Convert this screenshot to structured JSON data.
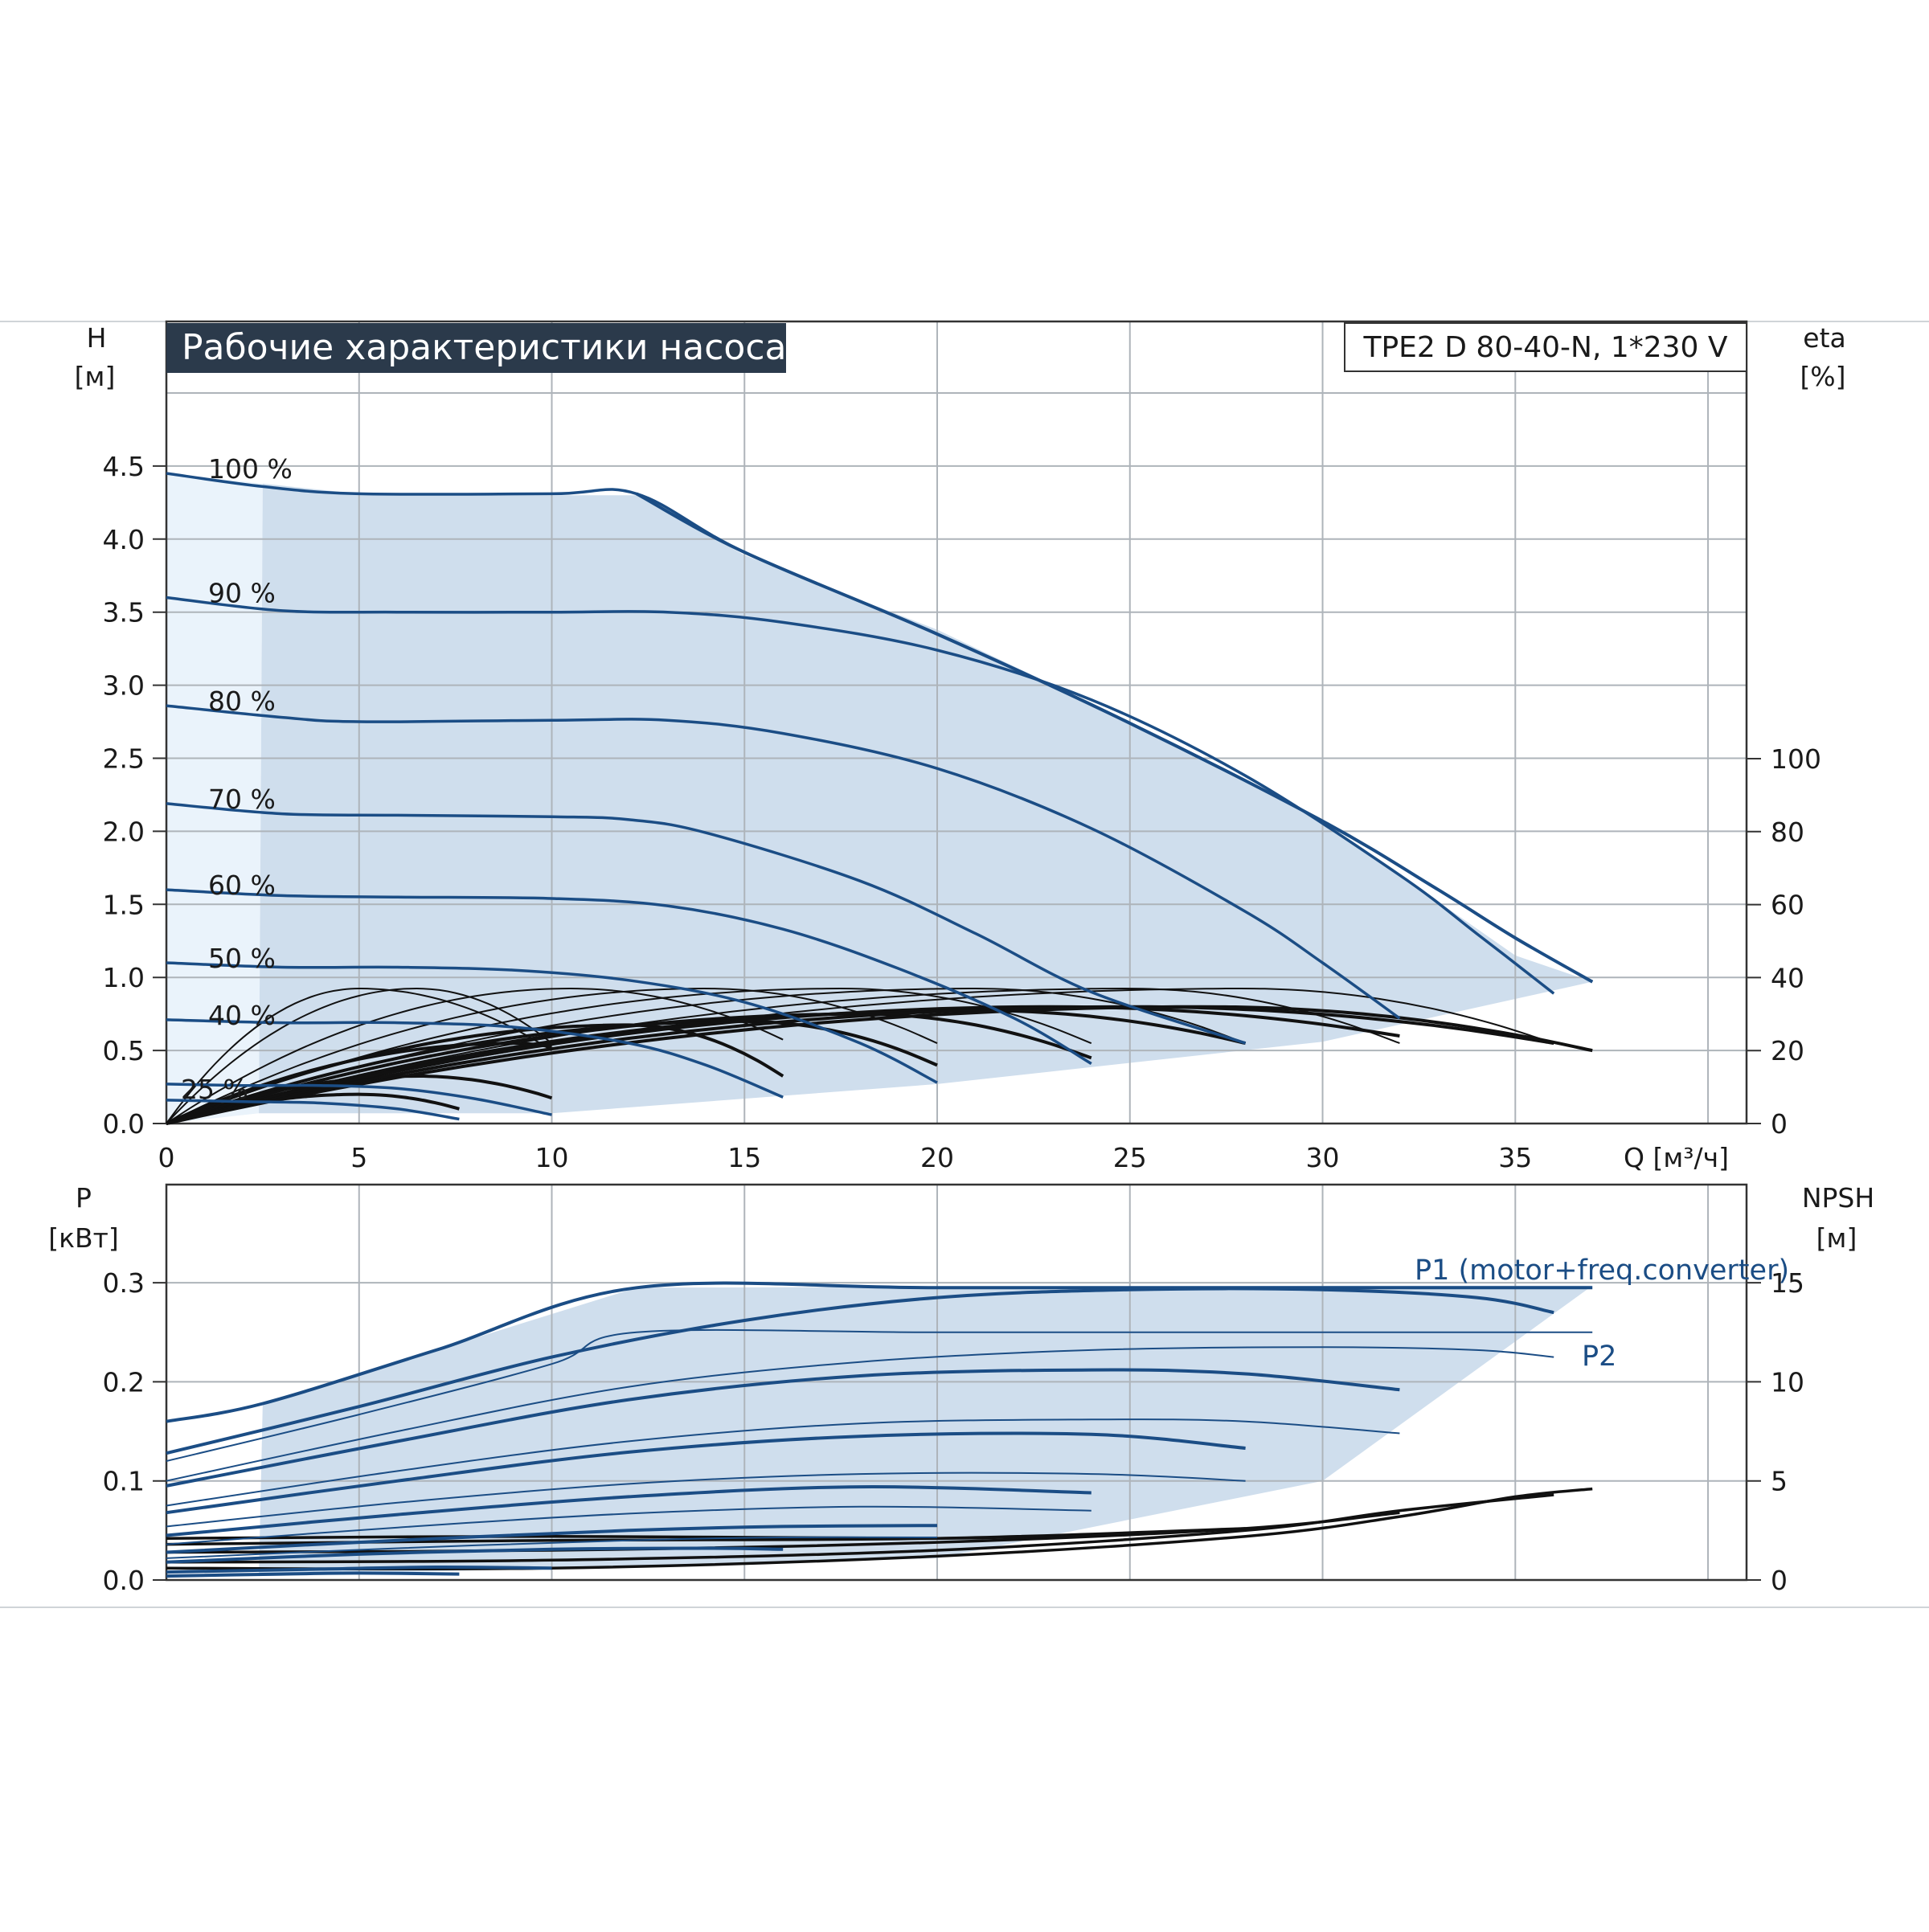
{
  "header": {
    "title": "Рабочие характеристики насоса",
    "model": "TPE2 D 80-40-N, 1*230 V"
  },
  "colors": {
    "curve": "#1b4d85",
    "fill": "#cfdeed",
    "fill_light": "#eaf3fb",
    "grid": "#aeb4ba",
    "title_bg": "#2b3a4b",
    "black": "#111111"
  },
  "chart_data": [
    {
      "type": "line",
      "panel": "head",
      "title": "Рабочие характеристики насоса",
      "y_label": "H",
      "y_unit": "[м]",
      "y2_label": "eta",
      "y2_unit": "[%]",
      "x_label": "Q [м³/ч]",
      "xlim": [
        0,
        41
      ],
      "ylim": [
        0,
        5
      ],
      "y2lim": [
        0,
        100
      ],
      "x_ticks": [
        "0",
        "5",
        "10",
        "15",
        "20",
        "25",
        "30",
        "35"
      ],
      "y_ticks": [
        "0.0",
        "0.5",
        "1.0",
        "1.5",
        "2.0",
        "2.5",
        "3.0",
        "3.5",
        "4.0",
        "4.5"
      ],
      "y2_ticks": [
        "0",
        "20",
        "40",
        "60",
        "80",
        "100"
      ],
      "grid": true,
      "operating_area": [
        [
          2.4,
          0.07
        ],
        [
          10,
          0.07
        ],
        [
          20,
          0.27
        ],
        [
          30,
          0.56
        ],
        [
          37,
          0.97
        ],
        [
          35,
          1.15
        ],
        [
          30,
          2.07
        ],
        [
          25,
          2.75
        ],
        [
          20,
          3.38
        ],
        [
          15,
          3.89
        ],
        [
          12.2,
          4.3
        ],
        [
          10,
          4.3
        ],
        [
          5,
          4.31
        ],
        [
          2.5,
          4.38
        ]
      ],
      "speed_curves": [
        {
          "name": "100 %",
          "points": [
            [
              0,
              4.45
            ],
            [
              2.5,
              4.36
            ],
            [
              5,
              4.31
            ],
            [
              10,
              4.31
            ],
            [
              12.2,
              4.31
            ],
            [
              15,
              3.91
            ],
            [
              20,
              3.35
            ],
            [
              25,
              2.74
            ],
            [
              30,
              2.07
            ],
            [
              33,
              1.6
            ],
            [
              35,
              1.27
            ],
            [
              37,
              0.97
            ]
          ]
        },
        {
          "name": "90 %",
          "points": [
            [
              0,
              3.6
            ],
            [
              3,
              3.51
            ],
            [
              6,
              3.5
            ],
            [
              10,
              3.5
            ],
            [
              13,
              3.5
            ],
            [
              16,
              3.43
            ],
            [
              20,
              3.24
            ],
            [
              24,
              2.9
            ],
            [
              28,
              2.38
            ],
            [
              32,
              1.7
            ],
            [
              34,
              1.3
            ],
            [
              36,
              0.89
            ]
          ]
        },
        {
          "name": "80 %",
          "points": [
            [
              0,
              2.86
            ],
            [
              3,
              2.78
            ],
            [
              5,
              2.75
            ],
            [
              10,
              2.76
            ],
            [
              13,
              2.76
            ],
            [
              16,
              2.67
            ],
            [
              20,
              2.43
            ],
            [
              24,
              2.02
            ],
            [
              28,
              1.45
            ],
            [
              30,
              1.1
            ],
            [
              32,
              0.72
            ]
          ]
        },
        {
          "name": "70 %",
          "points": [
            [
              0,
              2.19
            ],
            [
              3,
              2.12
            ],
            [
              6,
              2.11
            ],
            [
              10,
              2.1
            ],
            [
              12,
              2.08
            ],
            [
              14,
              1.99
            ],
            [
              18,
              1.66
            ],
            [
              21,
              1.3
            ],
            [
              24,
              0.9
            ],
            [
              28,
              0.55
            ]
          ]
        },
        {
          "name": "60 %",
          "points": [
            [
              0,
              1.6
            ],
            [
              3,
              1.56
            ],
            [
              6,
              1.55
            ],
            [
              10,
              1.54
            ],
            [
              13,
              1.49
            ],
            [
              16,
              1.33
            ],
            [
              19,
              1.06
            ],
            [
              22,
              0.72
            ],
            [
              24,
              0.41
            ]
          ]
        },
        {
          "name": "50 %",
          "points": [
            [
              0,
              1.1
            ],
            [
              3,
              1.07
            ],
            [
              6,
              1.07
            ],
            [
              9,
              1.05
            ],
            [
              12,
              0.98
            ],
            [
              15,
              0.83
            ],
            [
              18,
              0.55
            ],
            [
              20,
              0.28
            ]
          ]
        },
        {
          "name": "40 %",
          "points": [
            [
              0,
              0.71
            ],
            [
              3,
              0.69
            ],
            [
              6,
              0.69
            ],
            [
              9,
              0.66
            ],
            [
              12,
              0.55
            ],
            [
              14,
              0.4
            ],
            [
              16,
              0.18
            ]
          ]
        },
        {
          "name": "25 %",
          "points": [
            [
              0,
              0.27
            ],
            [
              2,
              0.26
            ],
            [
              4,
              0.26
            ],
            [
              6,
              0.24
            ],
            [
              8,
              0.17
            ],
            [
              10,
              0.06
            ]
          ]
        },
        {
          "name": "",
          "points": [
            [
              0,
              0.16
            ],
            [
              2,
              0.15
            ],
            [
              4,
              0.14
            ],
            [
              6,
              0.1
            ],
            [
              7.6,
              0.03
            ]
          ]
        }
      ],
      "efficiency_curves": [
        {
          "peak_x": 5,
          "peak_eta": 37,
          "end_x": 10,
          "end_eta": 20
        },
        {
          "peak_x": 6.5,
          "peak_eta": 37,
          "end_x": 10,
          "end_eta": 22
        },
        {
          "peak_x": 10.5,
          "peak_eta": 37,
          "end_x": 16,
          "end_eta": 23
        },
        {
          "peak_x": 14,
          "peak_eta": 37,
          "end_x": 20,
          "end_eta": 22
        },
        {
          "peak_x": 17.5,
          "peak_eta": 37,
          "end_x": 24,
          "end_eta": 22
        },
        {
          "peak_x": 21,
          "peak_eta": 37,
          "end_x": 28,
          "end_eta": 22
        },
        {
          "peak_x": 25,
          "peak_eta": 37,
          "end_x": 32,
          "end_eta": 22
        },
        {
          "peak_x": 28,
          "peak_eta": 37,
          "end_x": 36,
          "end_eta": 22
        },
        {
          "peak_x": 5,
          "peak_eta": 8,
          "end_x": 7.6,
          "end_eta": 4
        },
        {
          "peak_x": 6.5,
          "peak_eta": 13,
          "end_x": 10,
          "end_eta": 7
        },
        {
          "peak_x": 9,
          "peak_eta": 22,
          "end_x": 10,
          "end_eta": 21
        },
        {
          "peak_x": 12,
          "peak_eta": 27,
          "end_x": 16,
          "end_eta": 13
        },
        {
          "peak_x": 15,
          "peak_eta": 28,
          "end_x": 20,
          "end_eta": 16
        },
        {
          "peak_x": 18,
          "peak_eta": 30,
          "end_x": 24,
          "end_eta": 18
        },
        {
          "peak_x": 21,
          "peak_eta": 31,
          "end_x": 28,
          "end_eta": 22
        },
        {
          "peak_x": 23,
          "peak_eta": 32,
          "end_x": 32,
          "end_eta": 24
        },
        {
          "peak_x": 25,
          "peak_eta": 32,
          "end_x": 36,
          "end_eta": 22
        },
        {
          "peak_x": 27,
          "peak_eta": 32,
          "end_x": 37,
          "end_eta": 20
        }
      ]
    },
    {
      "type": "line",
      "panel": "power",
      "y_label": "P",
      "y_unit": "[кВт]",
      "y2_label": "NPSH",
      "y2_unit": "[м]",
      "xlim": [
        0,
        41
      ],
      "ylim": [
        0,
        0.3
      ],
      "y2lim": [
        0,
        15
      ],
      "y_ticks": [
        "0.0",
        "0.1",
        "0.2",
        "0.3"
      ],
      "y2_ticks": [
        "0",
        "5",
        "10",
        "15"
      ],
      "grid": true,
      "annotations": [
        "P1 (motor+freq.converter)",
        "P2"
      ],
      "operating_area": [
        [
          2.4,
          0.004
        ],
        [
          20,
          0.022
        ],
        [
          30,
          0.1
        ],
        [
          37,
          0.297
        ],
        [
          31,
          0.297
        ],
        [
          12.2,
          0.295
        ],
        [
          7,
          0.232
        ],
        [
          2.5,
          0.178
        ]
      ],
      "p1_curves": [
        {
          "points": [
            [
              0,
              0.16
            ],
            [
              2.5,
              0.178
            ],
            [
              7,
              0.232
            ],
            [
              12.2,
              0.295
            ],
            [
              20,
              0.295
            ],
            [
              30,
              0.295
            ],
            [
              37,
              0.295
            ]
          ]
        },
        {
          "points": [
            [
              0,
              0.128
            ],
            [
              5,
              0.175
            ],
            [
              10,
              0.225
            ],
            [
              15,
              0.262
            ],
            [
              20,
              0.285
            ],
            [
              25,
              0.293
            ],
            [
              30,
              0.293
            ],
            [
              34,
              0.285
            ],
            [
              36,
              0.27
            ]
          ]
        },
        {
          "points": [
            [
              0,
              0.095
            ],
            [
              6,
              0.14
            ],
            [
              12,
              0.182
            ],
            [
              18,
              0.206
            ],
            [
              24,
              0.212
            ],
            [
              28,
              0.208
            ],
            [
              32,
              0.192
            ]
          ]
        },
        {
          "points": [
            [
              0,
              0.068
            ],
            [
              6,
              0.1
            ],
            [
              12,
              0.129
            ],
            [
              18,
              0.145
            ],
            [
              24,
              0.147
            ],
            [
              28,
              0.133
            ]
          ]
        },
        {
          "points": [
            [
              0,
              0.045
            ],
            [
              6,
              0.066
            ],
            [
              12,
              0.084
            ],
            [
              18,
              0.094
            ],
            [
              24,
              0.088
            ]
          ]
        },
        {
          "points": [
            [
              0,
              0.028
            ],
            [
              6,
              0.04
            ],
            [
              12,
              0.05
            ],
            [
              16,
              0.054
            ],
            [
              20,
              0.055
            ]
          ]
        },
        {
          "points": [
            [
              0,
              0.018
            ],
            [
              5,
              0.026
            ],
            [
              10,
              0.031
            ],
            [
              14,
              0.032
            ],
            [
              16,
              0.031
            ]
          ]
        },
        {
          "points": [
            [
              0,
              0.008
            ],
            [
              4,
              0.011
            ],
            [
              7,
              0.013
            ],
            [
              10,
              0.012
            ]
          ]
        },
        {
          "points": [
            [
              0,
              0.004
            ],
            [
              3,
              0.006
            ],
            [
              5,
              0.007
            ],
            [
              7.6,
              0.006
            ]
          ]
        }
      ],
      "p2_curves": [
        {
          "points": [
            [
              0,
              0.12
            ],
            [
              5,
              0.167
            ],
            [
              10,
              0.218
            ],
            [
              12.2,
              0.25
            ],
            [
              20,
              0.25
            ],
            [
              30,
              0.25
            ],
            [
              37,
              0.25
            ]
          ]
        },
        {
          "points": [
            [
              0,
              0.1
            ],
            [
              6,
              0.15
            ],
            [
              12,
              0.195
            ],
            [
              18,
              0.22
            ],
            [
              24,
              0.232
            ],
            [
              30,
              0.235
            ],
            [
              34,
              0.232
            ],
            [
              36,
              0.225
            ]
          ]
        },
        {
          "points": [
            [
              0,
              0.075
            ],
            [
              6,
              0.11
            ],
            [
              12,
              0.14
            ],
            [
              18,
              0.158
            ],
            [
              24,
              0.162
            ],
            [
              28,
              0.16
            ],
            [
              32,
              0.148
            ]
          ]
        },
        {
          "points": [
            [
              0,
              0.054
            ],
            [
              6,
              0.078
            ],
            [
              12,
              0.097
            ],
            [
              18,
              0.107
            ],
            [
              24,
              0.107
            ],
            [
              28,
              0.1
            ]
          ]
        },
        {
          "points": [
            [
              0,
              0.036
            ],
            [
              6,
              0.053
            ],
            [
              12,
              0.067
            ],
            [
              18,
              0.074
            ],
            [
              24,
              0.07
            ]
          ]
        },
        {
          "points": [
            [
              0,
              0.022
            ],
            [
              6,
              0.032
            ],
            [
              12,
              0.04
            ],
            [
              16,
              0.043
            ],
            [
              20,
              0.043
            ]
          ]
        }
      ],
      "npsh_curves": [
        {
          "points": [
            [
              0,
              0.6
            ],
            [
              10,
              0.6
            ],
            [
              20,
              1.2
            ],
            [
              28,
              2.2
            ],
            [
              32,
              3.2
            ],
            [
              35,
              4.2
            ],
            [
              37,
              4.6
            ]
          ]
        },
        {
          "points": [
            [
              0,
              0.9
            ],
            [
              10,
              1.0
            ],
            [
              20,
              1.5
            ],
            [
              28,
              2.5
            ],
            [
              32,
              3.5
            ],
            [
              36,
              4.3
            ]
          ]
        },
        {
          "points": [
            [
              0,
              1.4
            ],
            [
              10,
              1.5
            ],
            [
              20,
              1.9
            ],
            [
              28,
              2.6
            ],
            [
              32,
              3.4
            ]
          ]
        },
        {
          "points": [
            [
              0,
              1.8
            ],
            [
              10,
              2.0
            ],
            [
              20,
              2.1
            ],
            [
              28,
              2.6
            ]
          ]
        },
        {
          "points": [
            [
              0,
              2.1
            ],
            [
              10,
              2.2
            ],
            [
              20,
              2.1
            ],
            [
              24,
              2.3
            ]
          ]
        }
      ]
    }
  ]
}
